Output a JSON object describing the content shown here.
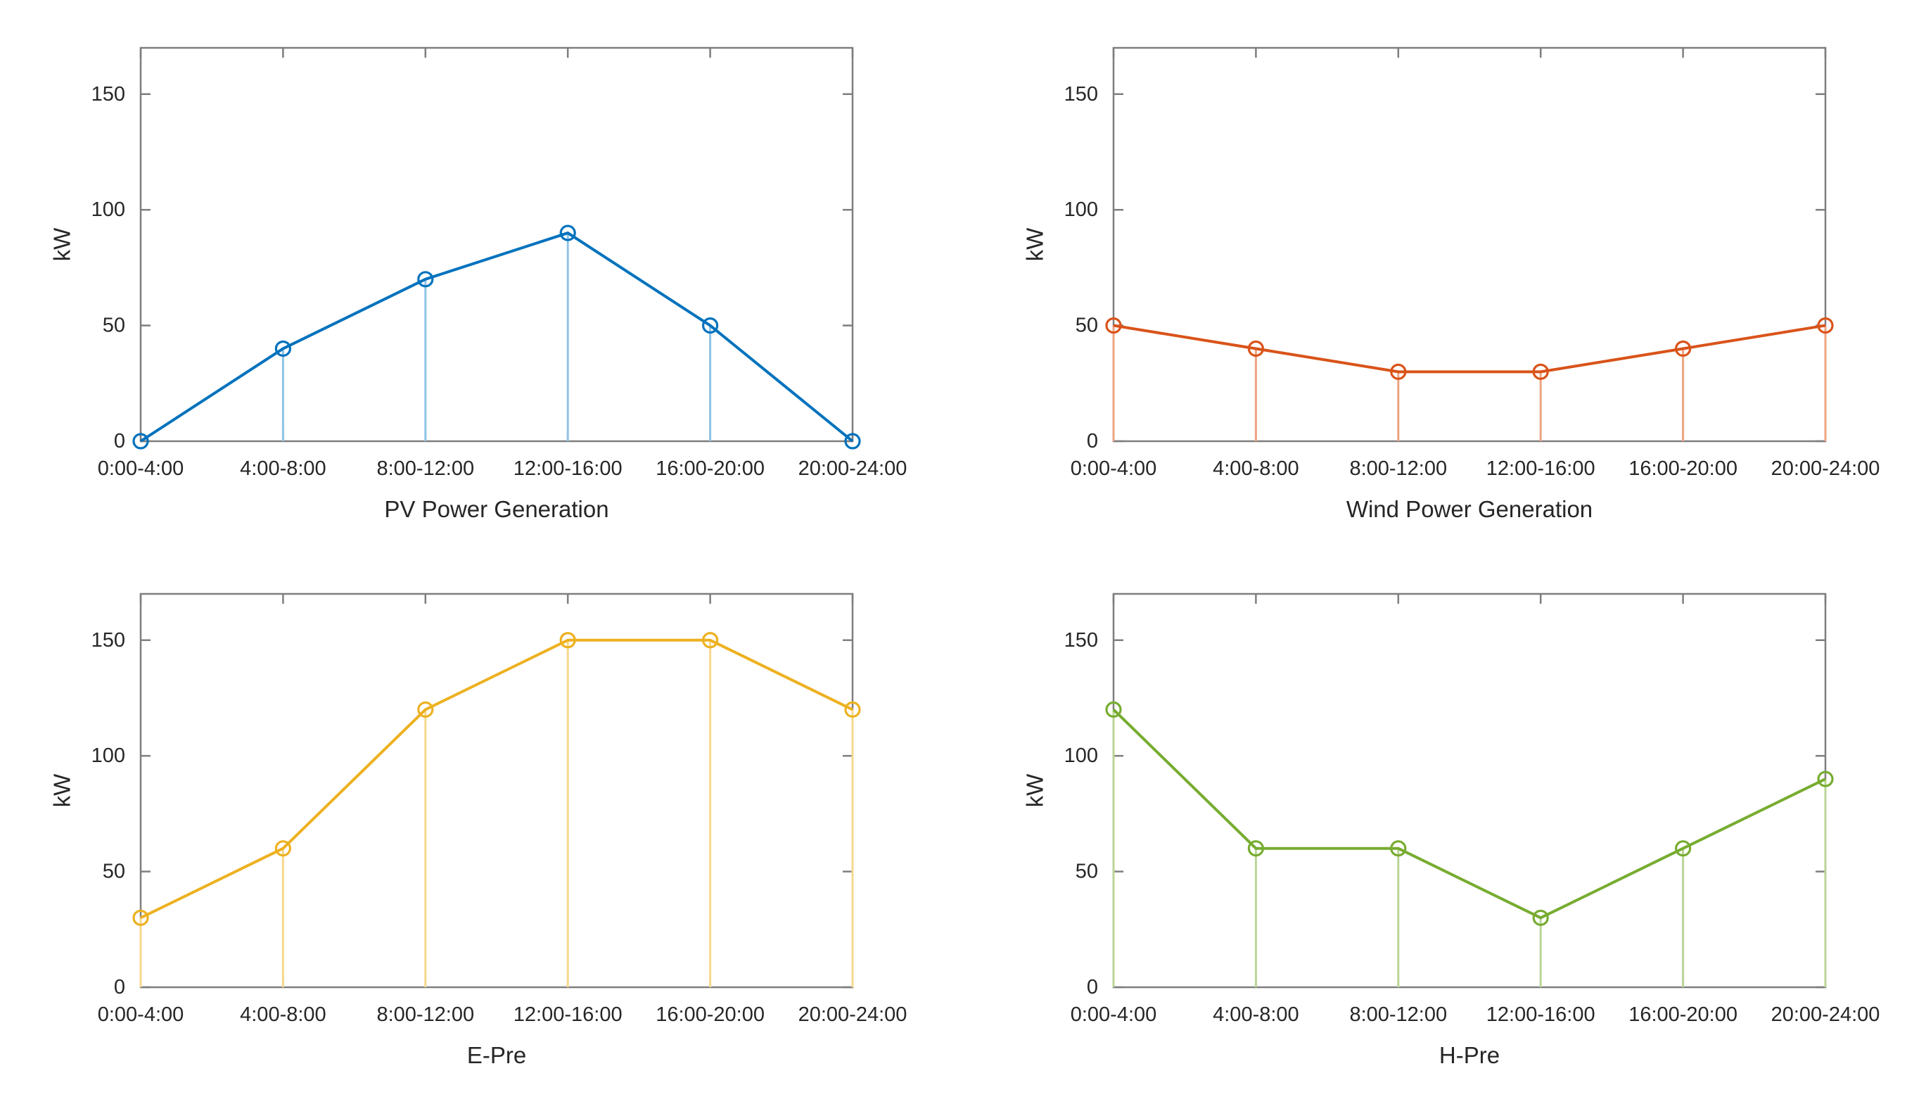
{
  "figure": {
    "background": "#FFFFFF",
    "axis_color": "#7E7E7E",
    "text_color": "#262626",
    "y_unit": "kW"
  },
  "chart_data": [
    {
      "type": "line",
      "title": "PV Power Generation",
      "ylabel": "kW",
      "xlabel": "PV Power Generation",
      "categories": [
        "0:00-4:00",
        "4:00-8:00",
        "8:00-12:00",
        "12:00-16:00",
        "16:00-20:00",
        "20:00-24:00"
      ],
      "values": [
        0,
        40,
        70,
        90,
        50,
        0
      ],
      "color": "#0072BD",
      "stem_color": "#8FC3E6",
      "marker": "open-circle",
      "stems": true,
      "grid": false,
      "legend_position": "none",
      "ylim": [
        0,
        170
      ],
      "yticks": [
        0,
        50,
        100,
        150
      ]
    },
    {
      "type": "line",
      "title": "Wind Power Generation",
      "ylabel": "kW",
      "xlabel": "Wind Power Generation",
      "categories": [
        "0:00-4:00",
        "4:00-8:00",
        "8:00-12:00",
        "12:00-16:00",
        "16:00-20:00",
        "20:00-24:00"
      ],
      "values": [
        50,
        40,
        30,
        30,
        40,
        50
      ],
      "color": "#D95319",
      "stem_color": "#EDA482",
      "marker": "open-circle",
      "stems": true,
      "grid": false,
      "legend_position": "none",
      "ylim": [
        0,
        170
      ],
      "yticks": [
        0,
        50,
        100,
        150
      ]
    },
    {
      "type": "line",
      "title": "E-Pre",
      "ylabel": "kW",
      "xlabel": "E-Pre",
      "categories": [
        "0:00-4:00",
        "4:00-8:00",
        "8:00-12:00",
        "12:00-16:00",
        "16:00-20:00",
        "20:00-24:00"
      ],
      "values": [
        30,
        60,
        120,
        150,
        150,
        120
      ],
      "color": "#EDB120",
      "stem_color": "#F6D88C",
      "marker": "open-circle",
      "stems": true,
      "grid": false,
      "legend_position": "none",
      "ylim": [
        0,
        170
      ],
      "yticks": [
        0,
        50,
        100,
        150
      ]
    },
    {
      "type": "line",
      "title": "H-Pre",
      "ylabel": "kW",
      "xlabel": "H-Pre",
      "categories": [
        "0:00-4:00",
        "4:00-8:00",
        "8:00-12:00",
        "12:00-16:00",
        "16:00-20:00",
        "20:00-24:00"
      ],
      "values": [
        120,
        60,
        60,
        30,
        60,
        90
      ],
      "color": "#77AC30",
      "stem_color": "#B9D596",
      "marker": "open-circle",
      "stems": true,
      "grid": false,
      "legend_position": "none",
      "ylim": [
        0,
        170
      ],
      "yticks": [
        0,
        50,
        100,
        150
      ]
    }
  ]
}
